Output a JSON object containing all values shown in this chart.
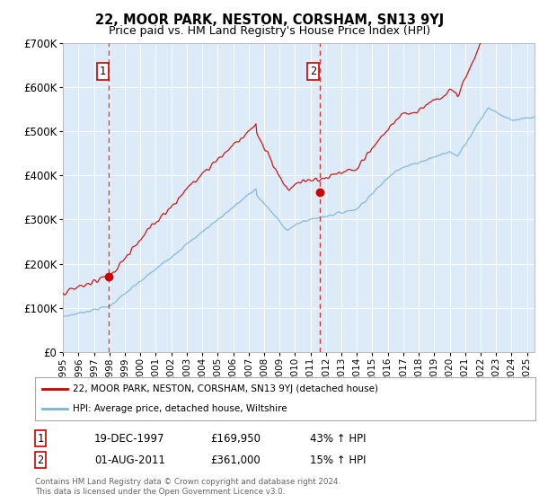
{
  "title": "22, MOOR PARK, NESTON, CORSHAM, SN13 9YJ",
  "subtitle": "Price paid vs. HM Land Registry's House Price Index (HPI)",
  "legend_line1": "22, MOOR PARK, NESTON, CORSHAM, SN13 9YJ (detached house)",
  "legend_line2": "HPI: Average price, detached house, Wiltshire",
  "sale1_label": "1",
  "sale1_date": "19-DEC-1997",
  "sale1_price": 169950,
  "sale1_hpi": "43% ↑ HPI",
  "sale1_x": 1997.97,
  "sale2_label": "2",
  "sale2_date": "01-AUG-2011",
  "sale2_price": 361000,
  "sale2_hpi": "15% ↑ HPI",
  "sale2_x": 2011.58,
  "hpi_color": "#7ab4d8",
  "price_color": "#cc0000",
  "vline_color": "#cc0000",
  "background_color": "#ddeaf7",
  "footer": "Contains HM Land Registry data © Crown copyright and database right 2024.\nThis data is licensed under the Open Government Licence v3.0.",
  "ylim": [
    0,
    700000
  ],
  "xlim_start": 1995.0,
  "xlim_end": 2025.5,
  "yticks": [
    0,
    100000,
    200000,
    300000,
    400000,
    500000,
    600000,
    700000
  ],
  "ytick_labels": [
    "£0",
    "£100K",
    "£200K",
    "£300K",
    "£400K",
    "£500K",
    "£600K",
    "£700K"
  ],
  "xticks": [
    1995,
    1996,
    1997,
    1998,
    1999,
    2000,
    2001,
    2002,
    2003,
    2004,
    2005,
    2006,
    2007,
    2008,
    2009,
    2010,
    2011,
    2012,
    2013,
    2014,
    2015,
    2016,
    2017,
    2018,
    2019,
    2020,
    2021,
    2022,
    2023,
    2024,
    2025
  ]
}
